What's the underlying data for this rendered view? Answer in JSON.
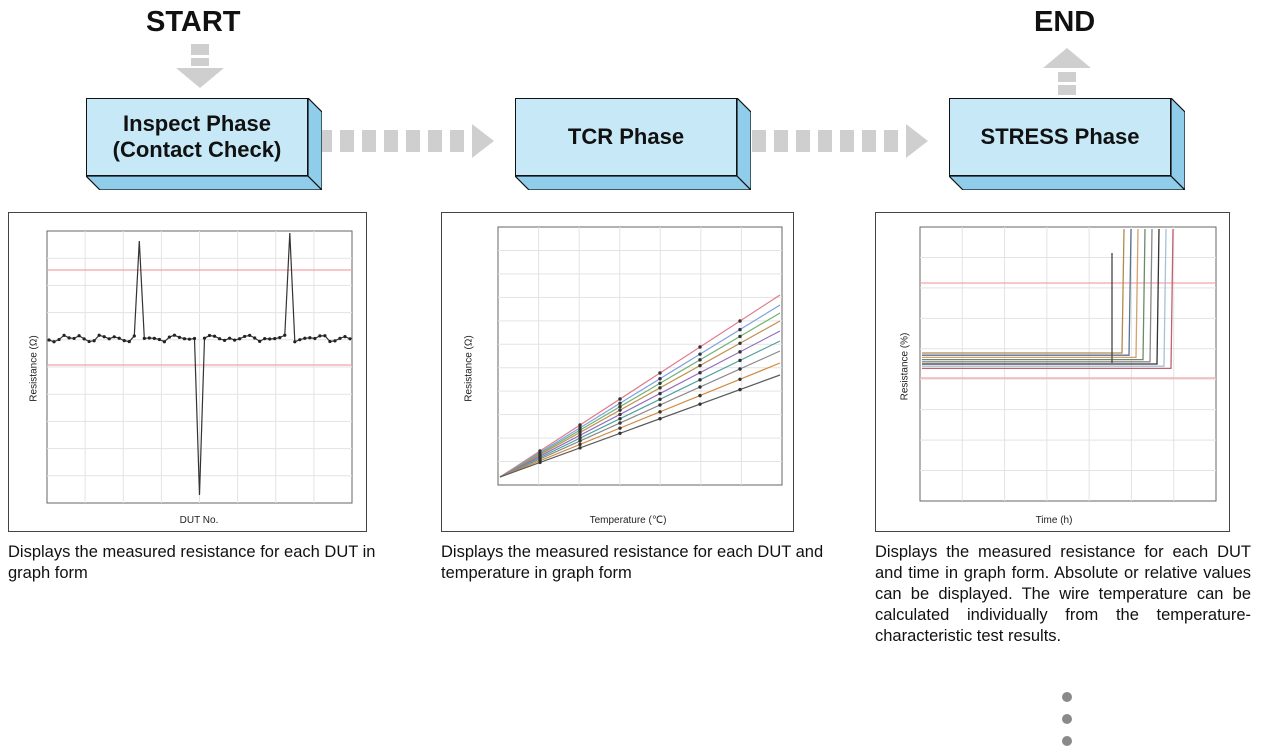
{
  "flow": {
    "start_label": "START",
    "end_label": "END",
    "phases": [
      {
        "line1": "Inspect Phase",
        "line2": "(Contact Check)"
      },
      {
        "line1": "TCR Phase",
        "line2": ""
      },
      {
        "line1": "STRESS Phase",
        "line2": ""
      }
    ]
  },
  "charts": {
    "inspect": {
      "ylabel": "Resistance (Ω)",
      "xlabel": "DUT No."
    },
    "tcr": {
      "ylabel": "Resistance (Ω)",
      "xlabel": "Temperature (℃)"
    },
    "stress": {
      "ylabel": "Resistance (%)",
      "xlabel": "Time (h)"
    }
  },
  "captions": {
    "inspect": "Displays the measured resistance for each DUT in graph form",
    "tcr": "Displays the measured resistance for each DUT and temperature in graph form",
    "stress": "Displays the measured resistance for each DUT and time in graph form. Absolute or relative values can be displayed. The wire temperature can be calculated individually from the temperature-characteristic test results."
  },
  "colors": {
    "phase_face": "#c6e8f7",
    "phase_side": "#8fcdea",
    "arrow_gray": "#cfcfcf",
    "limit_pink": "#f2a3a8"
  }
}
